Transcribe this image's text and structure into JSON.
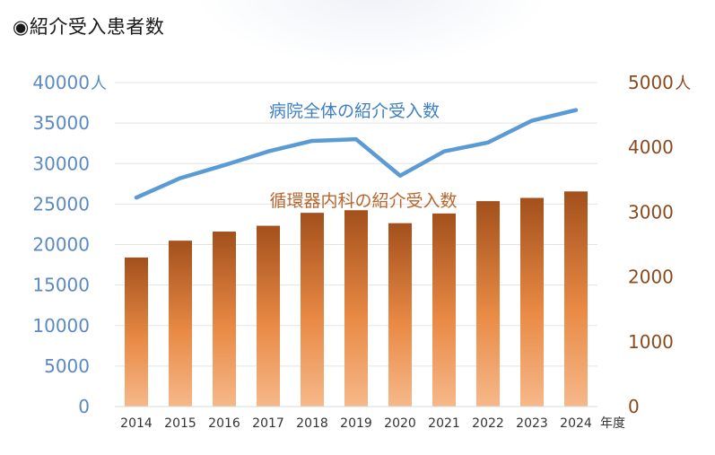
{
  "page": {
    "title": "◉紹介受入患者数"
  },
  "chart_data": {
    "type": "bar+line",
    "categories": [
      "2014",
      "2015",
      "2016",
      "2017",
      "2018",
      "2019",
      "2020",
      "2021",
      "2022",
      "2023",
      "2024"
    ],
    "x_unit": "年度",
    "y_left": {
      "unit": "人",
      "ticks": [
        "0",
        "5000",
        "10000",
        "15000",
        "20000",
        "25000",
        "30000",
        "35000",
        "40000"
      ],
      "range": [
        0,
        40000
      ],
      "color": "#5b89c4"
    },
    "y_right": {
      "unit": "人",
      "ticks": [
        "0",
        "1000",
        "2000",
        "3000",
        "4000",
        "5000"
      ],
      "range": [
        0,
        5000
      ],
      "color": "#8a4a1e"
    },
    "grid": true,
    "series": [
      {
        "name": "病院全体の紹介受入数",
        "type": "line",
        "axis": "left",
        "color": "#5b9bd5",
        "values": [
          25800,
          28200,
          29800,
          31500,
          32800,
          33000,
          28500,
          31500,
          32600,
          35300,
          36600
        ]
      },
      {
        "name": "循環器内科の紹介受入数",
        "type": "bar",
        "axis": "right",
        "color_top": "#a3501c",
        "color_bottom": "#f6b88a",
        "values": [
          2300,
          2560,
          2700,
          2790,
          2990,
          3030,
          2830,
          2980,
          3170,
          3220,
          3320
        ]
      }
    ]
  }
}
